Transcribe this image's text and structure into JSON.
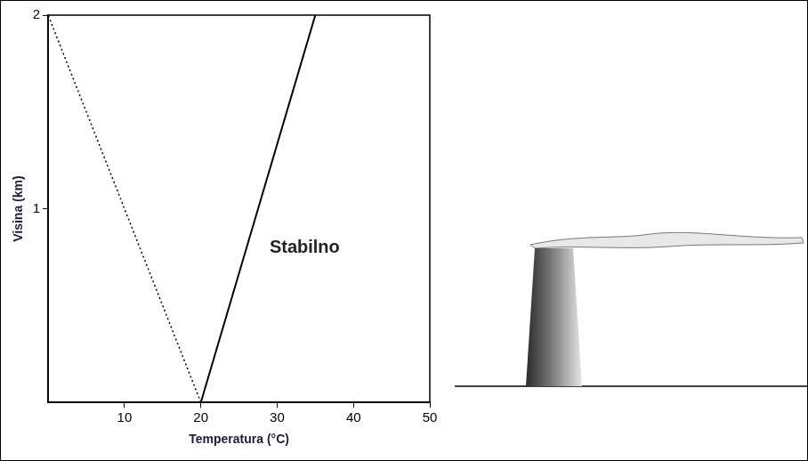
{
  "chart_data": {
    "type": "line",
    "x_label": "Temperatura (°C)",
    "y_label": "Visina (km)",
    "annotations": [
      "Stabilno"
    ],
    "xlim": [
      0,
      50
    ],
    "xticks": [
      10,
      20,
      30,
      40,
      50
    ],
    "ylim": [
      0,
      2
    ],
    "yticks": [
      1,
      2
    ],
    "grid": false,
    "series": [
      {
        "color": "#000000",
        "line_style": "dotted",
        "x": [
          20,
          0
        ],
        "values": [
          0,
          2
        ]
      },
      {
        "color": "#000000",
        "line_style": "solid",
        "x": [
          20,
          35
        ],
        "values": [
          0,
          2
        ]
      }
    ]
  }
}
